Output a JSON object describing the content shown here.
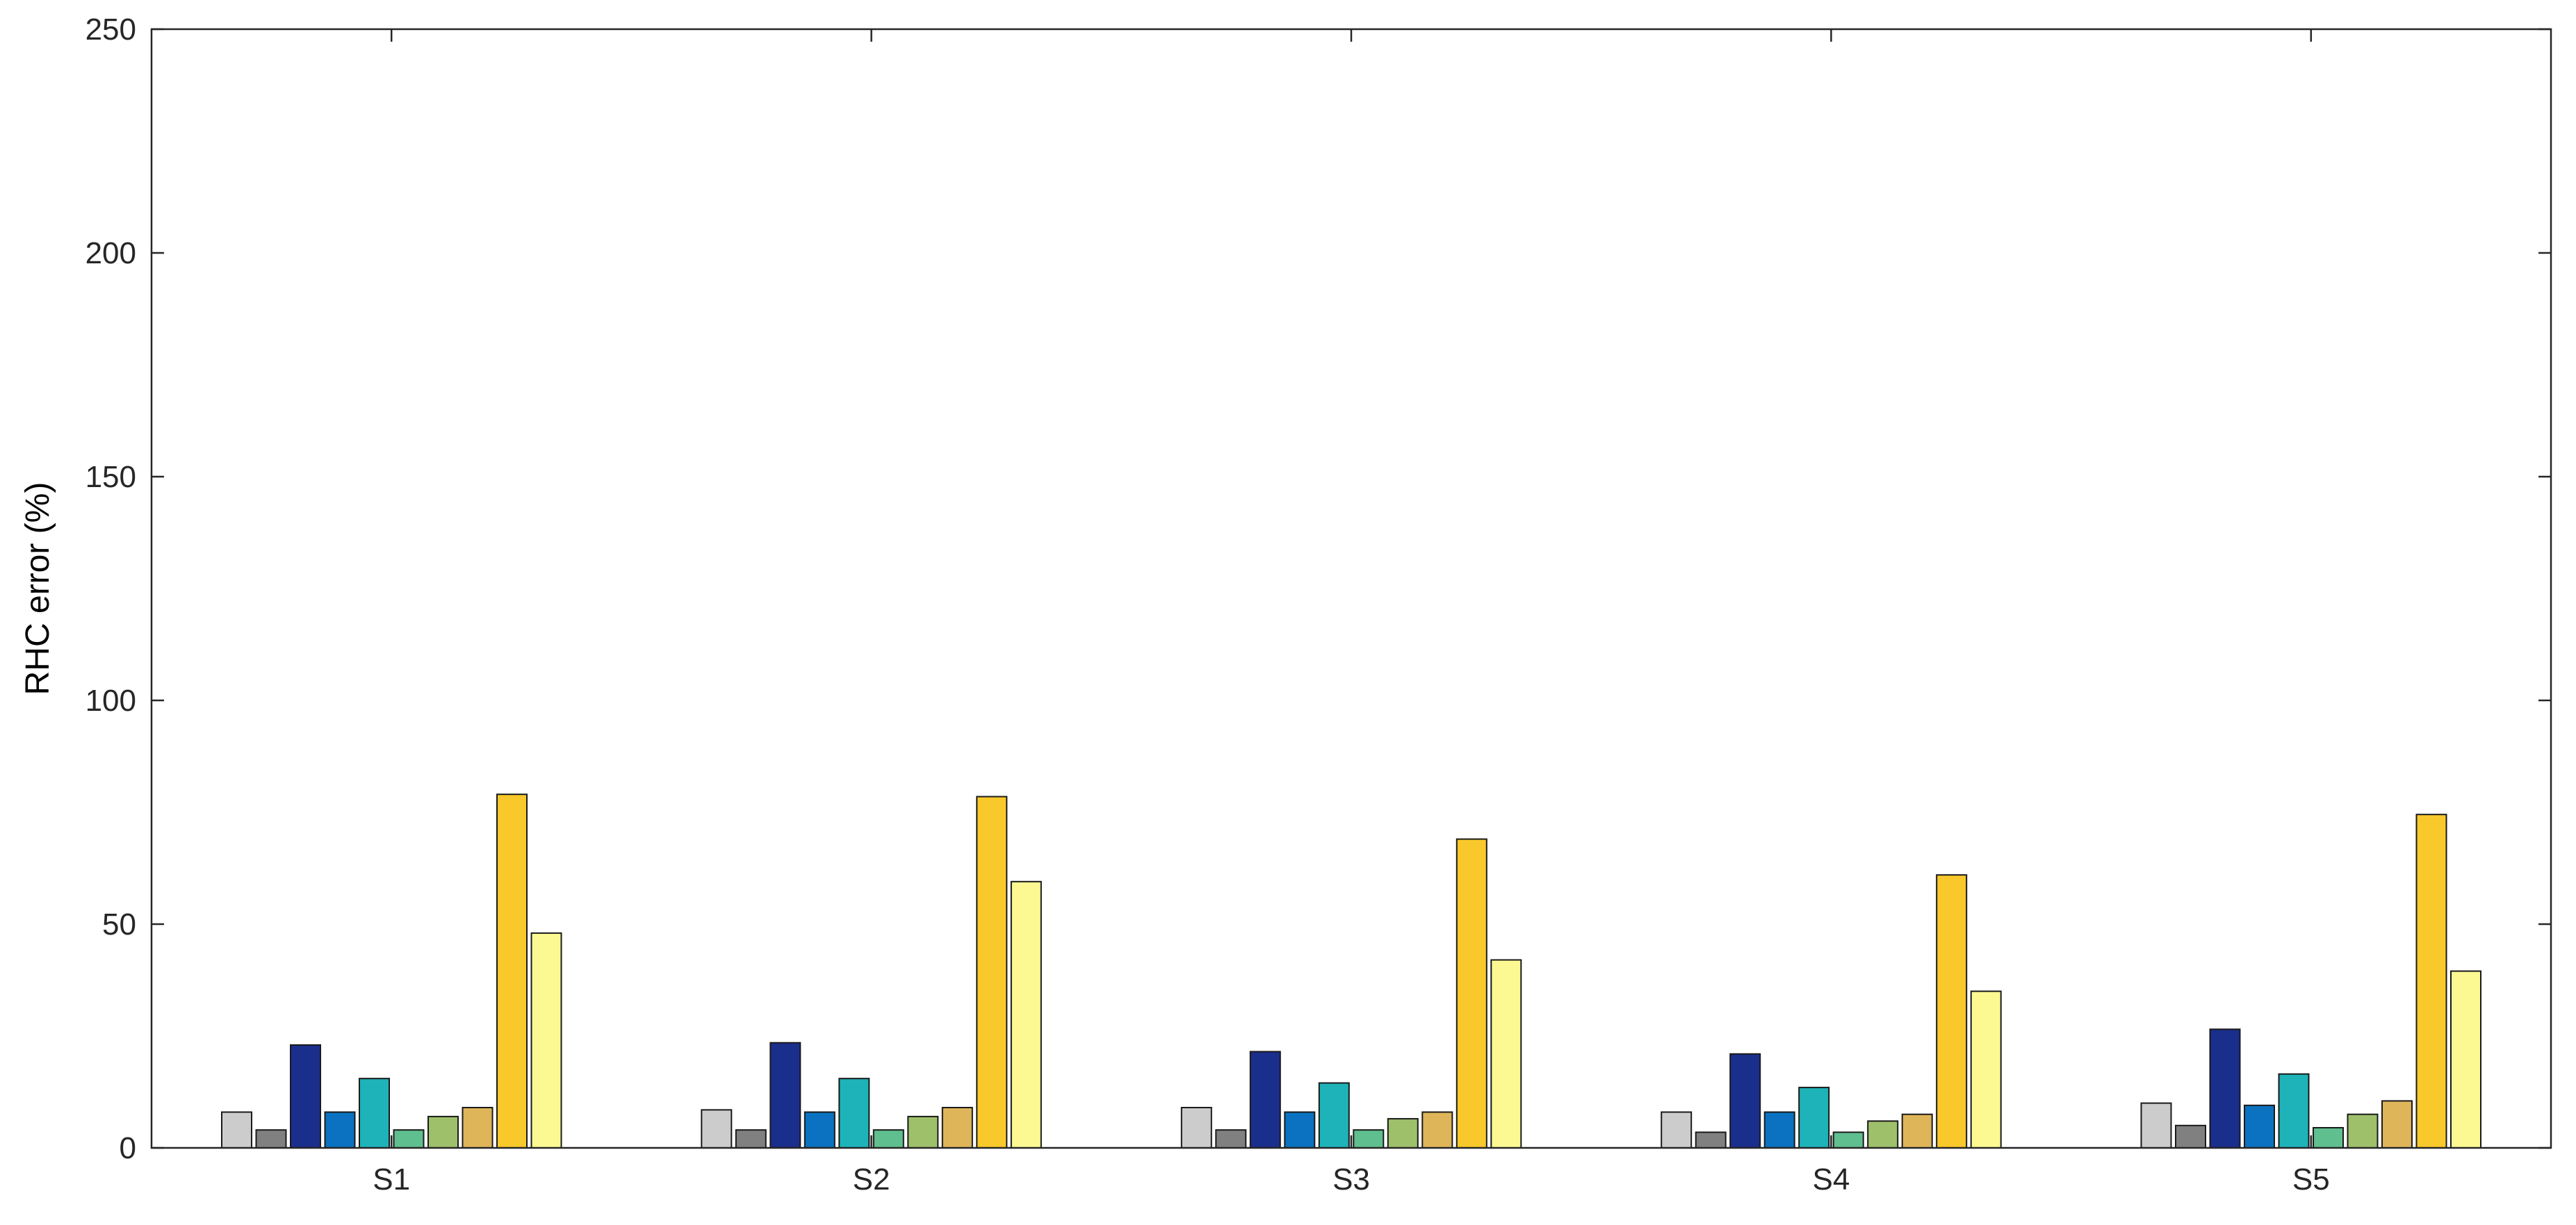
{
  "chart_data": {
    "type": "bar",
    "title": "",
    "xlabel": "",
    "ylabel": "RHC error (%)",
    "ylim": [
      0,
      250
    ],
    "yticks": [
      0,
      50,
      100,
      150,
      200,
      250
    ],
    "grid": false,
    "legend": "none",
    "categories": [
      "S1",
      "S2",
      "S3",
      "S4",
      "S5"
    ],
    "series": [
      {
        "color": "#cccccc",
        "values": [
          8,
          8.5,
          9,
          8,
          10
        ]
      },
      {
        "color": "#808080",
        "values": [
          4,
          4,
          4,
          3.5,
          5
        ]
      },
      {
        "color": "#1a2e8c",
        "values": [
          23,
          23.5,
          21.5,
          21,
          26.5
        ]
      },
      {
        "color": "#0a72c0",
        "values": [
          8,
          8,
          8,
          8,
          9.5
        ]
      },
      {
        "color": "#1eb3b8",
        "values": [
          15.5,
          15.5,
          14.5,
          13.5,
          16.5
        ]
      },
      {
        "color": "#5fbf8e",
        "values": [
          4,
          4,
          4,
          3.5,
          4.5
        ]
      },
      {
        "color": "#9fc06b",
        "values": [
          7,
          7,
          6.5,
          6,
          7.5
        ]
      },
      {
        "color": "#dfb55a",
        "values": [
          9,
          9,
          8,
          7.5,
          10.5
        ]
      },
      {
        "color": "#f9c92c",
        "values": [
          79,
          78.5,
          69,
          61,
          74.5
        ]
      },
      {
        "color": "#fdf992",
        "values": [
          48,
          59.5,
          42,
          35,
          39.5
        ]
      }
    ]
  }
}
